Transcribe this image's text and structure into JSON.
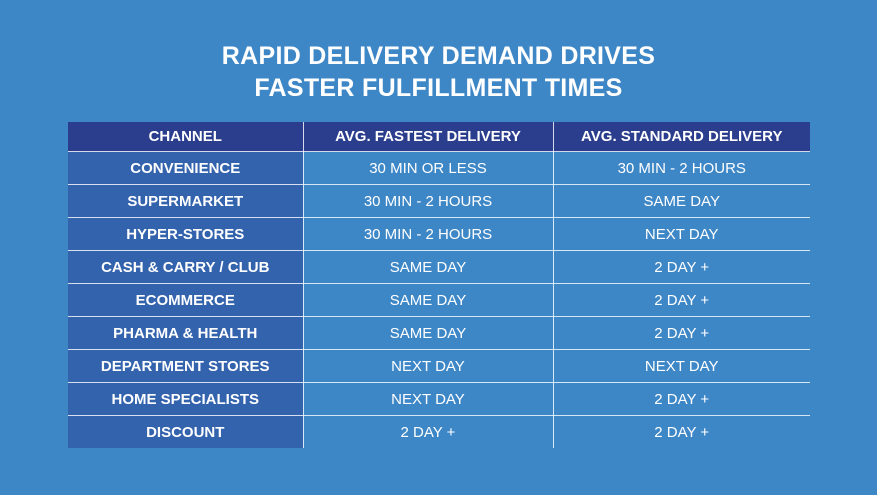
{
  "header": {
    "title": [
      "RAPID DELIVERY DEMAND DRIVES",
      "FASTER FULFILLMENT TIMES"
    ]
  },
  "table": {
    "columns": [
      "CHANNEL",
      "AVG. FASTEST DELIVERY",
      "AVG. STANDARD DELIVERY"
    ],
    "rows": [
      [
        "CONVENIENCE",
        "30 MIN OR LESS",
        "30 MIN - 2 HOURS"
      ],
      [
        "SUPERMARKET",
        "30 MIN - 2 HOURS",
        "SAME DAY"
      ],
      [
        "HYPER-STORES",
        "30 MIN - 2 HOURS",
        "NEXT DAY"
      ],
      [
        "CASH & CARRY / CLUB",
        "SAME DAY",
        "2 DAY +"
      ],
      [
        "ECOMMERCE",
        "SAME DAY",
        "2 DAY +"
      ],
      [
        "PHARMA & HEALTH",
        "SAME DAY",
        "2 DAY +"
      ],
      [
        "DEPARTMENT STORES",
        "NEXT DAY",
        "NEXT DAY"
      ],
      [
        "HOME SPECIALISTS",
        "NEXT DAY",
        "2 DAY +"
      ],
      [
        "DISCOUNT",
        "2 DAY +",
        "2 DAY +"
      ]
    ]
  }
}
